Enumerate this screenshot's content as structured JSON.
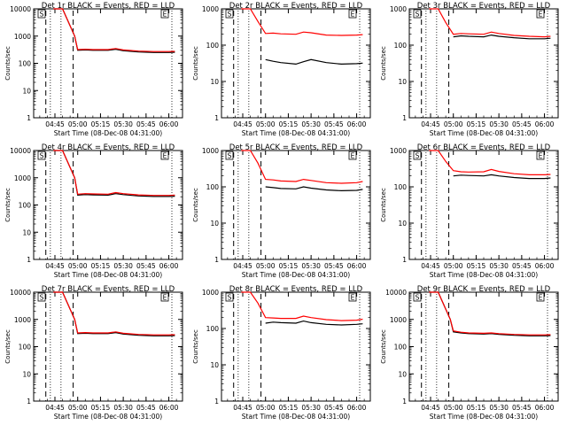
{
  "chart_data": [
    {
      "type": "line",
      "title": "Det 1r BLACK = Events, RED = LLD",
      "xlabel": "Start Time (08-Dec-08 04:31:00)",
      "ylabel": "Counts/sec",
      "y_scale": "log",
      "ylim": [
        1,
        10000
      ],
      "x_tick_labels": [
        "04:45",
        "05:00",
        "05:15",
        "05:30",
        "05:45",
        "06:00"
      ],
      "y_tick_labels": [
        "1",
        "10",
        "100",
        "1000",
        "10000"
      ],
      "region_labels": [
        "S",
        "E"
      ],
      "series": [
        {
          "name": "Events",
          "color": "#000000",
          "x": [
            "04:44",
            "04:50",
            "04:58",
            "05:00",
            "05:05",
            "05:10",
            "05:20",
            "05:25",
            "05:30",
            "05:40",
            "05:50",
            "06:00",
            "06:04"
          ],
          "y": [
            10000,
            10000,
            1000,
            300,
            310,
            300,
            300,
            330,
            290,
            260,
            250,
            250,
            255
          ]
        },
        {
          "name": "LLD",
          "color": "#ff0000",
          "x": [
            "04:44",
            "04:50",
            "04:58",
            "05:00",
            "05:05",
            "05:10",
            "05:20",
            "05:25",
            "05:30",
            "05:40",
            "05:50",
            "06:00",
            "06:04"
          ],
          "y": [
            10000,
            10000,
            1000,
            320,
            330,
            320,
            320,
            350,
            310,
            280,
            270,
            270,
            275
          ]
        }
      ]
    },
    {
      "type": "line",
      "title": "Det 2r BLACK = Events, RED = LLD",
      "xlabel": "Start Time (08-Dec-08 04:31:00)",
      "ylabel": "Counts/sec",
      "y_scale": "log",
      "ylim": [
        1,
        1000
      ],
      "x_tick_labels": [
        "04:45",
        "05:00",
        "05:15",
        "05:30",
        "05:45",
        "06:00"
      ],
      "y_tick_labels": [
        "1",
        "10",
        "100",
        "1000"
      ],
      "region_labels": [
        "S",
        "E"
      ],
      "series": [
        {
          "name": "Events",
          "color": "#000000",
          "x": [
            "05:00",
            "05:05",
            "05:10",
            "05:20",
            "05:25",
            "05:30",
            "05:40",
            "05:50",
            "06:00",
            "06:04"
          ],
          "y": [
            40,
            36,
            33,
            30,
            35,
            40,
            33,
            30,
            31,
            32
          ]
        },
        {
          "name": "LLD",
          "color": "#ff0000",
          "x": [
            "04:44",
            "04:50",
            "04:55",
            "05:00",
            "05:05",
            "05:10",
            "05:20",
            "05:25",
            "05:30",
            "05:40",
            "05:50",
            "06:00",
            "06:04"
          ],
          "y": [
            1000,
            1000,
            450,
            210,
            215,
            205,
            200,
            230,
            220,
            190,
            185,
            190,
            195
          ]
        }
      ]
    },
    {
      "type": "line",
      "title": "Det 3r BLACK = Events, RED = LLD",
      "xlabel": "Start Time (08-Dec-08 04:31:00)",
      "ylabel": "Counts/sec",
      "y_scale": "log",
      "ylim": [
        1,
        1000
      ],
      "x_tick_labels": [
        "04:45",
        "05:00",
        "05:15",
        "05:30",
        "05:45",
        "06:00"
      ],
      "y_tick_labels": [
        "1",
        "10",
        "100",
        "1000"
      ],
      "region_labels": [
        "S",
        "E"
      ],
      "series": [
        {
          "name": "Events",
          "color": "#000000",
          "x": [
            "05:00",
            "05:05",
            "05:10",
            "05:20",
            "05:25",
            "05:30",
            "05:40",
            "05:50",
            "06:00",
            "06:04"
          ],
          "y": [
            170,
            180,
            175,
            170,
            190,
            175,
            160,
            150,
            150,
            155
          ]
        },
        {
          "name": "LLD",
          "color": "#ff0000",
          "x": [
            "04:44",
            "04:50",
            "04:55",
            "05:00",
            "05:05",
            "05:10",
            "05:20",
            "05:25",
            "05:30",
            "05:40",
            "05:50",
            "06:00",
            "06:04"
          ],
          "y": [
            1000,
            1000,
            420,
            200,
            210,
            205,
            200,
            230,
            210,
            185,
            175,
            170,
            175
          ]
        }
      ]
    },
    {
      "type": "line",
      "title": "Det 4r BLACK = Events, RED = LLD",
      "xlabel": "Start Time (08-Dec-08 04:31:00)",
      "ylabel": "Counts/sec",
      "y_scale": "log",
      "ylim": [
        1,
        10000
      ],
      "x_tick_labels": [
        "04:45",
        "05:00",
        "05:15",
        "05:30",
        "05:45",
        "06:00"
      ],
      "y_tick_labels": [
        "1",
        "10",
        "100",
        "1000",
        "10000"
      ],
      "region_labels": [
        "S",
        "E"
      ],
      "series": [
        {
          "name": "Events",
          "color": "#000000",
          "x": [
            "04:44",
            "04:50",
            "04:58",
            "05:00",
            "05:05",
            "05:10",
            "05:20",
            "05:25",
            "05:30",
            "05:40",
            "05:50",
            "06:00",
            "06:04"
          ],
          "y": [
            10000,
            10000,
            1000,
            230,
            240,
            235,
            230,
            260,
            240,
            215,
            205,
            205,
            210
          ]
        },
        {
          "name": "LLD",
          "color": "#ff0000",
          "x": [
            "04:44",
            "04:50",
            "04:58",
            "05:00",
            "05:05",
            "05:10",
            "05:20",
            "05:25",
            "05:30",
            "05:40",
            "05:50",
            "06:00",
            "06:04"
          ],
          "y": [
            10000,
            10000,
            1000,
            250,
            260,
            255,
            250,
            285,
            260,
            235,
            225,
            225,
            230
          ]
        }
      ]
    },
    {
      "type": "line",
      "title": "Det 5r BLACK = Events, RED = LLD",
      "xlabel": "Start Time (08-Dec-08 04:31:00)",
      "ylabel": "Counts/sec",
      "y_scale": "log",
      "ylim": [
        1,
        1000
      ],
      "x_tick_labels": [
        "04:45",
        "05:00",
        "05:15",
        "05:30",
        "05:45",
        "06:00"
      ],
      "y_tick_labels": [
        "1",
        "10",
        "100",
        "1000"
      ],
      "region_labels": [
        "S",
        "E"
      ],
      "series": [
        {
          "name": "Events",
          "color": "#000000",
          "x": [
            "05:00",
            "05:05",
            "05:10",
            "05:20",
            "05:25",
            "05:30",
            "05:40",
            "05:50",
            "06:00",
            "06:04"
          ],
          "y": [
            100,
            95,
            90,
            88,
            100,
            92,
            82,
            78,
            80,
            85
          ]
        },
        {
          "name": "LLD",
          "color": "#ff0000",
          "x": [
            "04:44",
            "04:50",
            "04:55",
            "05:00",
            "05:05",
            "05:10",
            "05:20",
            "05:25",
            "05:30",
            "05:40",
            "05:50",
            "06:00",
            "06:04"
          ],
          "y": [
            1000,
            1000,
            450,
            160,
            155,
            145,
            140,
            160,
            150,
            130,
            125,
            130,
            140
          ]
        }
      ]
    },
    {
      "type": "line",
      "title": "Det 6r BLACK = Events, RED = LLD",
      "xlabel": "Start Time (08-Dec-08 04:31:00)",
      "ylabel": "Counts/sec",
      "y_scale": "log",
      "ylim": [
        1,
        1000
      ],
      "x_tick_labels": [
        "04:45",
        "05:00",
        "05:15",
        "05:30",
        "05:45",
        "06:00"
      ],
      "y_tick_labels": [
        "1",
        "10",
        "100",
        "1000"
      ],
      "region_labels": [
        "S",
        "E"
      ],
      "series": [
        {
          "name": "Events",
          "color": "#000000",
          "x": [
            "05:00",
            "05:05",
            "05:10",
            "05:20",
            "05:25",
            "05:30",
            "05:40",
            "05:50",
            "06:00",
            "06:04"
          ],
          "y": [
            200,
            210,
            205,
            200,
            215,
            200,
            180,
            170,
            170,
            175
          ]
        },
        {
          "name": "LLD",
          "color": "#ff0000",
          "x": [
            "04:44",
            "04:50",
            "04:55",
            "05:00",
            "05:05",
            "05:10",
            "05:20",
            "05:25",
            "05:30",
            "05:40",
            "05:50",
            "06:00",
            "06:04"
          ],
          "y": [
            1000,
            1000,
            500,
            280,
            260,
            255,
            260,
            300,
            265,
            230,
            215,
            215,
            220
          ]
        }
      ]
    },
    {
      "type": "line",
      "title": "Det 7r BLACK = Events, RED = LLD",
      "xlabel": "Start Time (08-Dec-08 04:31:00)",
      "ylabel": "Counts/sec",
      "y_scale": "log",
      "ylim": [
        1,
        10000
      ],
      "x_tick_labels": [
        "04:45",
        "05:00",
        "05:15",
        "05:30",
        "05:45",
        "06:00"
      ],
      "y_tick_labels": [
        "1",
        "10",
        "100",
        "1000",
        "10000"
      ],
      "region_labels": [
        "S",
        "E"
      ],
      "series": [
        {
          "name": "Events",
          "color": "#000000",
          "x": [
            "04:44",
            "04:50",
            "04:58",
            "05:00",
            "05:05",
            "05:10",
            "05:20",
            "05:25",
            "05:30",
            "05:40",
            "05:50",
            "06:00",
            "06:04"
          ],
          "y": [
            10000,
            10000,
            1000,
            300,
            310,
            300,
            300,
            330,
            290,
            260,
            250,
            250,
            255
          ]
        },
        {
          "name": "LLD",
          "color": "#ff0000",
          "x": [
            "04:44",
            "04:50",
            "04:58",
            "05:00",
            "05:05",
            "05:10",
            "05:20",
            "05:25",
            "05:30",
            "05:40",
            "05:50",
            "06:00",
            "06:04"
          ],
          "y": [
            10000,
            10000,
            1000,
            320,
            330,
            320,
            320,
            350,
            310,
            280,
            270,
            270,
            275
          ]
        }
      ]
    },
    {
      "type": "line",
      "title": "Det 8r BLACK = Events, RED = LLD",
      "xlabel": "Start Time (08-Dec-08 04:31:00)",
      "ylabel": "Counts/sec",
      "y_scale": "log",
      "ylim": [
        1,
        1000
      ],
      "x_tick_labels": [
        "04:45",
        "05:00",
        "05:15",
        "05:30",
        "05:45",
        "06:00"
      ],
      "y_tick_labels": [
        "1",
        "10",
        "100",
        "1000"
      ],
      "region_labels": [
        "S",
        "E"
      ],
      "series": [
        {
          "name": "Events",
          "color": "#000000",
          "x": [
            "05:00",
            "05:05",
            "05:10",
            "05:20",
            "05:25",
            "05:30",
            "05:40",
            "05:50",
            "06:00",
            "06:04"
          ],
          "y": [
            140,
            150,
            145,
            140,
            160,
            145,
            130,
            125,
            130,
            135
          ]
        },
        {
          "name": "LLD",
          "color": "#ff0000",
          "x": [
            "04:44",
            "04:50",
            "04:55",
            "05:00",
            "05:05",
            "05:10",
            "05:20",
            "05:25",
            "05:30",
            "05:40",
            "05:50",
            "06:00",
            "06:04"
          ],
          "y": [
            1000,
            1000,
            500,
            200,
            195,
            190,
            190,
            220,
            200,
            175,
            165,
            170,
            180
          ]
        }
      ]
    },
    {
      "type": "line",
      "title": "Det 9r BLACK = Events, RED = LLD",
      "xlabel": "Start Time (08-Dec-08 04:31:00)",
      "ylabel": "Counts/sec",
      "y_scale": "log",
      "ylim": [
        1,
        10000
      ],
      "x_tick_labels": [
        "04:45",
        "05:00",
        "05:15",
        "05:30",
        "05:45",
        "06:00"
      ],
      "y_tick_labels": [
        "1",
        "10",
        "100",
        "1000",
        "10000"
      ],
      "region_labels": [
        "S",
        "E"
      ],
      "series": [
        {
          "name": "Events",
          "color": "#000000",
          "x": [
            "04:44",
            "04:50",
            "04:58",
            "05:00",
            "05:05",
            "05:10",
            "05:20",
            "05:25",
            "05:30",
            "05:40",
            "05:50",
            "06:00",
            "06:04"
          ],
          "y": [
            10000,
            10000,
            1000,
            350,
            320,
            300,
            290,
            300,
            280,
            260,
            250,
            250,
            255
          ]
        },
        {
          "name": "LLD",
          "color": "#ff0000",
          "x": [
            "04:44",
            "04:50",
            "04:58",
            "05:00",
            "05:05",
            "05:10",
            "05:20",
            "05:25",
            "05:30",
            "05:40",
            "05:50",
            "06:00",
            "06:04"
          ],
          "y": [
            10000,
            10000,
            1000,
            380,
            340,
            320,
            310,
            320,
            300,
            280,
            270,
            270,
            275
          ]
        }
      ]
    }
  ]
}
